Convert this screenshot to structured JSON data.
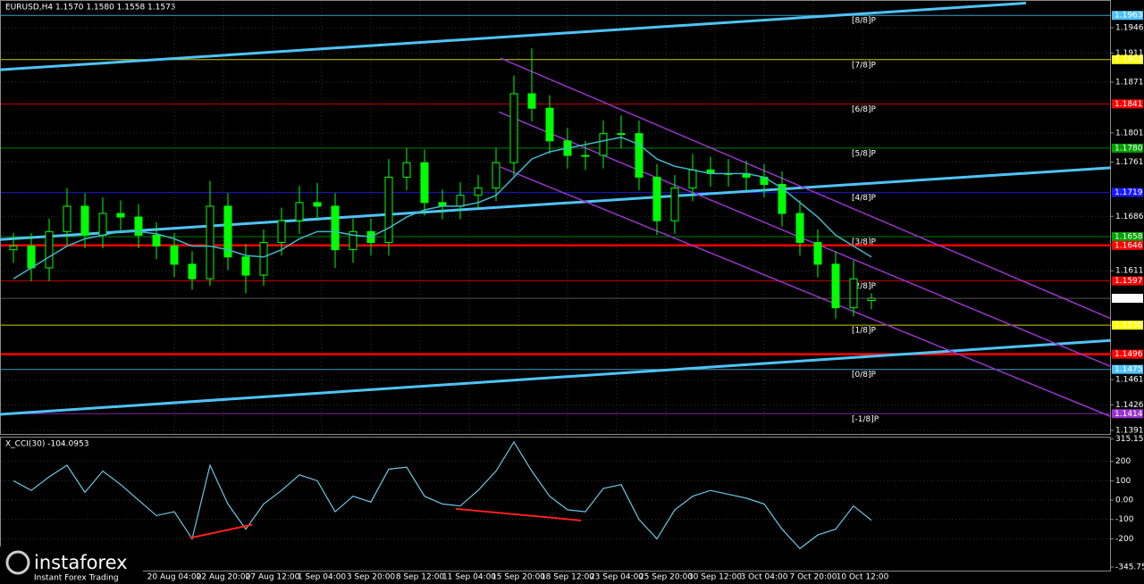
{
  "chart_data": [
    {
      "type": "candlestick",
      "title": "EURUSD,H4  1.1570 1.1580 1.1558 1.1573",
      "ylim": [
        1.1386,
        1.1983
      ],
      "yticks": [
        1.1946,
        1.1911,
        1.1871,
        1.1801,
        1.1761,
        1.1686,
        1.1611,
        1.1461,
        1.1426,
        1.1391
      ],
      "current_price": 1.1573,
      "up_color": "#00ff00",
      "down_color": "#00ff00",
      "ma_color": "#3fb8c8",
      "open": [
        1.164,
        1.1645,
        1.1615,
        1.1665,
        1.17,
        1.166,
        1.169,
        1.1685,
        1.166,
        1.1645,
        1.162,
        1.16,
        1.17,
        1.163,
        1.1605,
        1.165,
        1.168,
        1.1705,
        1.17,
        1.164,
        1.1665,
        1.165,
        1.174,
        1.176,
        1.1705,
        1.17,
        1.1715,
        1.1725,
        1.176,
        1.1855,
        1.1835,
        1.179,
        1.177,
        1.177,
        1.18,
        1.18,
        1.174,
        1.168,
        1.1725,
        1.175,
        1.1745,
        1.1745,
        1.174,
        1.173,
        1.169,
        1.165,
        1.162,
        1.156,
        1.157
      ],
      "high": [
        1.1663,
        1.1663,
        1.1683,
        1.1725,
        1.1718,
        1.1712,
        1.1708,
        1.1703,
        1.1678,
        1.1663,
        1.1638,
        1.1735,
        1.1718,
        1.1648,
        1.1668,
        1.1698,
        1.1728,
        1.1732,
        1.1718,
        1.1683,
        1.1683,
        1.1765,
        1.178,
        1.1778,
        1.1723,
        1.1733,
        1.1743,
        1.178,
        1.188,
        1.1918,
        1.1853,
        1.1808,
        1.179,
        1.1818,
        1.1825,
        1.1818,
        1.1758,
        1.1743,
        1.1772,
        1.1768,
        1.1765,
        1.1763,
        1.1758,
        1.1748,
        1.1708,
        1.1668,
        1.1638,
        1.1625,
        1.158
      ],
      "low": [
        1.1622,
        1.1597,
        1.1597,
        1.1647,
        1.1642,
        1.1642,
        1.1667,
        1.1642,
        1.1627,
        1.1602,
        1.1585,
        1.159,
        1.1612,
        1.158,
        1.159,
        1.1632,
        1.1662,
        1.1682,
        1.1615,
        1.1622,
        1.1632,
        1.1632,
        1.1722,
        1.1687,
        1.1682,
        1.1682,
        1.1697,
        1.1707,
        1.1742,
        1.1817,
        1.1772,
        1.1752,
        1.175,
        1.1752,
        1.178,
        1.1722,
        1.166,
        1.1662,
        1.1707,
        1.1727,
        1.1727,
        1.1722,
        1.1712,
        1.1672,
        1.1632,
        1.1602,
        1.1545,
        1.1548,
        1.1558
      ],
      "close": [
        1.1645,
        1.1615,
        1.1665,
        1.17,
        1.166,
        1.169,
        1.1685,
        1.166,
        1.1645,
        1.162,
        1.16,
        1.17,
        1.163,
        1.1605,
        1.165,
        1.168,
        1.1705,
        1.17,
        1.164,
        1.1665,
        1.165,
        1.174,
        1.176,
        1.1705,
        1.17,
        1.1715,
        1.1725,
        1.176,
        1.1855,
        1.1835,
        1.179,
        1.177,
        1.177,
        1.18,
        1.18,
        1.174,
        1.168,
        1.1725,
        1.175,
        1.1745,
        1.1745,
        1.174,
        1.173,
        1.169,
        1.165,
        1.162,
        1.156,
        1.16,
        1.1573
      ],
      "ma": [
        1.16,
        1.1615,
        1.163,
        1.1645,
        1.1655,
        1.166,
        1.1665,
        1.1665,
        1.1662,
        1.1655,
        1.1645,
        1.1645,
        1.164,
        1.1632,
        1.163,
        1.164,
        1.1655,
        1.1665,
        1.1665,
        1.166,
        1.1658,
        1.167,
        1.1685,
        1.1695,
        1.17,
        1.17,
        1.1705,
        1.1715,
        1.174,
        1.1765,
        1.1775,
        1.178,
        1.1785,
        1.179,
        1.1795,
        1.1785,
        1.1765,
        1.1755,
        1.175,
        1.1745,
        1.1745,
        1.1745,
        1.174,
        1.1725,
        1.1705,
        1.1685,
        1.166,
        1.1645,
        1.163
      ],
      "levels": [
        {
          "value": 1.1963,
          "label": "1.1963",
          "tag": "[8/8]P",
          "color": "#4fc3f7"
        },
        {
          "value": 1.1902,
          "label": "1.1902",
          "tag": "[7/8]P",
          "color": "#ffff00"
        },
        {
          "value": 1.1841,
          "label": "1.1841",
          "tag": "[6/8]P",
          "color": "#ff0000"
        },
        {
          "value": 1.178,
          "label": "1.1780",
          "tag": "[5/8]P",
          "color": "#00a000"
        },
        {
          "value": 1.1719,
          "label": "1.1719",
          "tag": "[4/8]P",
          "color": "#1a1aff"
        },
        {
          "value": 1.1658,
          "label": "1.1658",
          "tag": "[3/8]P",
          "color": "#00a000"
        },
        {
          "value": 1.1597,
          "label": "1.1597",
          "tag": "[2/8]P",
          "color": "#ff0000"
        },
        {
          "value": 1.1536,
          "label": "1.1536",
          "tag": "[1/8]P",
          "color": "#ffff00"
        },
        {
          "value": 1.1475,
          "label": "1.1475",
          "tag": "[0/8]P",
          "color": "#4fc3f7"
        },
        {
          "value": 1.1414,
          "label": "1.1414",
          "tag": "[-1/8]P",
          "color": "#9933cc"
        }
      ],
      "red_lines": [
        {
          "value": 1.1646,
          "label": "1.1646",
          "color": "#ff0000"
        },
        {
          "value": 1.1496,
          "label": "1.1496",
          "color": "#ff0000"
        }
      ],
      "trendlines": [
        {
          "color": "#4fc3f7",
          "points": [
            [
              -0.75,
              1.1888
            ],
            [
              56.65,
              1.198
            ]
          ]
        },
        {
          "color": "#4fc3f7",
          "points": [
            [
              -0.75,
              1.1654
            ],
            [
              61.4,
              1.1753
            ]
          ]
        },
        {
          "color": "#4fc3f7",
          "points": [
            [
              -0.75,
              1.1413
            ],
            [
              61.4,
              1.1515
            ]
          ]
        },
        {
          "color": "#9933cc",
          "points": [
            [
              27.25,
              1.1904
            ],
            [
              61.4,
              1.1545
            ]
          ]
        },
        {
          "color": "#9933cc",
          "points": [
            [
              27.15,
              1.183
            ],
            [
              61.4,
              1.1479
            ]
          ]
        },
        {
          "color": "#9933cc",
          "points": [
            [
              27.25,
              1.1754
            ],
            [
              61.4,
              1.141
            ]
          ]
        }
      ],
      "time_labels": [
        "20 Aug 04:00",
        "22 Aug 20:00",
        "27 Aug 12:00",
        "1 Sep 04:00",
        "3 Sep 20:00",
        "8 Sep 12:00",
        "11 Sep 04:00",
        "15 Sep 20:00",
        "18 Sep 12:00",
        "23 Sep 04:00",
        "25 Sep 20:00",
        "30 Sep 12:00",
        "3 Oct 04:00",
        "7 Oct 20:00",
        "10 Oct 12:00"
      ]
    },
    {
      "type": "line",
      "title": "X_CCI(30) -104.0953",
      "color": "#6ec6e6",
      "ylim": [
        -364,
        323
      ],
      "yticks": [
        315.1542,
        200,
        100,
        {
          "value": 0,
          "label": "0.00"
        },
        -100,
        -200,
        -345.7539
      ],
      "values": [
        100,
        50,
        120,
        180,
        40,
        150,
        80,
        0,
        -80,
        -60,
        -200,
        180,
        -20,
        -150,
        -20,
        50,
        130,
        100,
        -60,
        20,
        -10,
        160,
        170,
        20,
        -20,
        -30,
        50,
        150,
        300,
        150,
        20,
        -50,
        -60,
        60,
        80,
        -100,
        -200,
        -50,
        20,
        50,
        30,
        10,
        -20,
        -150,
        -250,
        -180,
        -150,
        -30,
        -104.0953
      ],
      "divergences": [
        {
          "color": "#ff2020",
          "points": [
            [
              9.9,
              -195
            ],
            [
              13.35,
              -127
            ]
          ]
        },
        {
          "color": "#ff2020",
          "points": [
            [
              24.75,
              -45
            ],
            [
              31.75,
              -105
            ]
          ]
        }
      ]
    }
  ],
  "logo": {
    "name": "instaforex",
    "tagline": "Instant Forex Trading"
  }
}
